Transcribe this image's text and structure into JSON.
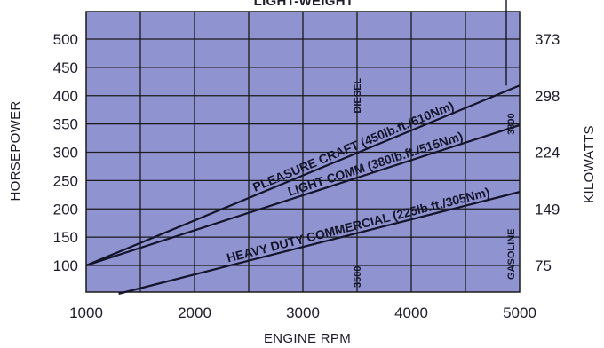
{
  "chart_data": {
    "type": "line",
    "title": "LIGHT-WEIGHT",
    "xlabel": "ENGINE RPM",
    "ylabel": "HORSEPOWER",
    "y2label": "KILOWATTS",
    "xlim": [
      1000,
      5000
    ],
    "ylim": [
      50,
      550
    ],
    "x_ticks": [
      "1000",
      "2000",
      "3000",
      "4000",
      "5000"
    ],
    "y_ticks": [
      "500",
      "450",
      "400",
      "350",
      "300",
      "250",
      "200",
      "150",
      "100"
    ],
    "y_tick_values": [
      500,
      450,
      400,
      350,
      300,
      250,
      200,
      150,
      100
    ],
    "y2_ticks": [
      "373",
      "298",
      "224",
      "149",
      "75"
    ],
    "y2_tick_hp": [
      500,
      400,
      300,
      200,
      100
    ],
    "grid": true,
    "series": [
      {
        "name": "PLEASURE CRAFT (450lb.ft./610Nm)",
        "x": [
          1000,
          5000
        ],
        "y": [
          100,
          418
        ]
      },
      {
        "name": "LIGHT COMM (380lb.ft./515Nm)",
        "x": [
          1000,
          5000
        ],
        "y": [
          100,
          348
        ]
      },
      {
        "name": "HEAVY DUTY COMMERCIAL (225lb.ft./305Nm)",
        "x": [
          1300,
          5000
        ],
        "y": [
          50,
          230
        ]
      }
    ],
    "annotations": [
      {
        "text": "DIESEL",
        "x": 3500,
        "y": 400
      },
      {
        "text": "3500",
        "x": 3500,
        "y": 80
      },
      {
        "text": "3800",
        "x": 4920,
        "y": 350
      },
      {
        "text": "GASOLINE",
        "x": 4920,
        "y": 120
      }
    ]
  }
}
